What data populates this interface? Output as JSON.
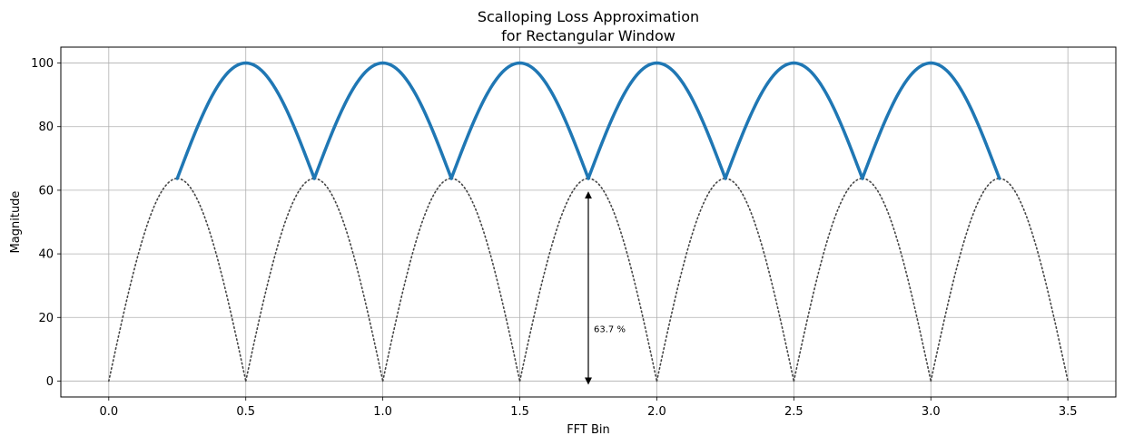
{
  "chart_data": {
    "type": "line",
    "title_lines": [
      "Scalloping Loss Approximation",
      "for Rectangular Window"
    ],
    "xlabel": "FFT Bin",
    "ylabel": "Magnitude",
    "xlim": [
      -0.175,
      3.675
    ],
    "ylim": [
      -5,
      105
    ],
    "xticks": [
      0.0,
      0.5,
      1.0,
      1.5,
      2.0,
      2.5,
      3.0,
      3.5
    ],
    "xtick_labels": [
      "0.0",
      "0.5",
      "1.0",
      "1.5",
      "2.0",
      "2.5",
      "3.0",
      "3.5"
    ],
    "yticks": [
      0,
      20,
      40,
      60,
      80,
      100
    ],
    "ytick_labels": [
      "0",
      "20",
      "40",
      "60",
      "80",
      "100"
    ],
    "grid": true,
    "series": [
      {
        "style": "solid",
        "color": "#1f77b4",
        "description_hint": "max envelope of sinusoidal half-lobes",
        "segments": [
          {
            "x_start": 0.25,
            "x_end": 0.75,
            "center": 0.5,
            "peak": 100,
            "edge": 63.7
          },
          {
            "x_start": 0.75,
            "x_end": 1.25,
            "center": 1.0,
            "peak": 100,
            "edge": 63.7
          },
          {
            "x_start": 1.25,
            "x_end": 1.75,
            "center": 1.5,
            "peak": 100,
            "edge": 63.7
          },
          {
            "x_start": 1.75,
            "x_end": 2.25,
            "center": 2.0,
            "peak": 100,
            "edge": 63.7
          },
          {
            "x_start": 2.25,
            "x_end": 2.75,
            "center": 2.5,
            "peak": 100,
            "edge": 63.7
          },
          {
            "x_start": 2.75,
            "x_end": 3.25,
            "center": 3.0,
            "peak": 100,
            "edge": 63.7
          }
        ]
      },
      {
        "style": "dotted",
        "color": "#444444",
        "lobes": [
          {
            "x_start": 0.0,
            "x_end": 0.25,
            "center": 0.5
          },
          {
            "x_start": 0.25,
            "x_end": 0.75,
            "center": 0.5
          },
          {
            "x_start": 0.75,
            "x_end": 1.25,
            "center": 1.0
          },
          {
            "x_start": 1.25,
            "x_end": 1.75,
            "center": 1.5
          },
          {
            "x_start": 1.75,
            "x_end": 2.25,
            "center": 2.0
          },
          {
            "x_start": 2.25,
            "x_end": 2.75,
            "center": 2.5
          },
          {
            "x_start": 2.75,
            "x_end": 3.25,
            "center": 3.0
          },
          {
            "x_start": 3.25,
            "x_end": 3.5,
            "center": 3.0
          }
        ]
      }
    ],
    "annotation": {
      "text": "63.7 %",
      "x": 1.75,
      "y_from": 0,
      "y_to": 58.5,
      "text_x": 1.77,
      "text_y": 16.5
    }
  }
}
